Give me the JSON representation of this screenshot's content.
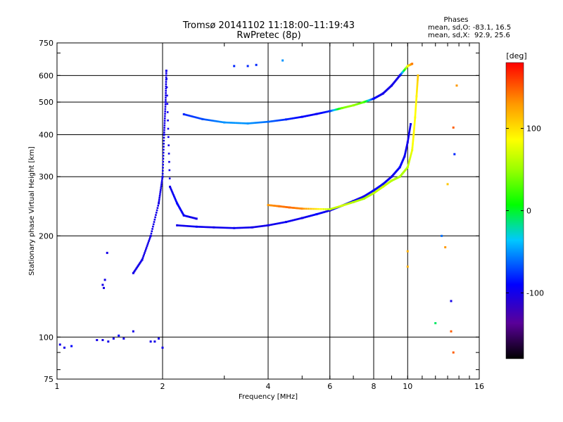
{
  "chart_data": {
    "type": "scatter",
    "title": "Tromsø 20141102 11:18:00–11:19:43",
    "subtitle": "RwPretec (8p)",
    "xlabel": "Frequency [MHz]",
    "ylabel": "Stationary phase Virtual Height [km]",
    "x_scale": "log",
    "y_scale": "log",
    "xlim": [
      1,
      16
    ],
    "ylim": [
      75,
      750
    ],
    "x_ticks": [
      1,
      2,
      4,
      6,
      8,
      10,
      16
    ],
    "x_tick_labels": [
      "1",
      "2",
      "4",
      "6",
      "8",
      "10",
      "16"
    ],
    "y_ticks": [
      75,
      100,
      200,
      300,
      400,
      500,
      600,
      750
    ],
    "y_tick_labels": [
      "75",
      "100",
      "200",
      "300",
      "400",
      "500",
      "600",
      "750"
    ],
    "grid": true,
    "legend": {
      "title": "Phases",
      "line_o": "mean, sd,O: -83.1, 16.5",
      "line_x": "mean, sd,X:  92.9, 25.6"
    },
    "colorbar": {
      "label": "[deg]",
      "range": [
        -180,
        180
      ],
      "ticks": [
        100,
        0,
        -100
      ],
      "tick_labels": [
        "100",
        "0",
        "-100"
      ]
    },
    "series": [
      {
        "values_desc": "E/low traces",
        "points": [
          [
            1.02,
            95,
            -100
          ],
          [
            1.05,
            93,
            -100
          ],
          [
            1.1,
            94,
            -90
          ],
          [
            1.3,
            98,
            -100
          ],
          [
            1.35,
            98,
            -100
          ],
          [
            1.4,
            97,
            -100
          ],
          [
            1.45,
            99,
            -100
          ],
          [
            1.5,
            101,
            -90
          ],
          [
            1.55,
            99,
            -100
          ],
          [
            1.65,
            104,
            -100
          ],
          [
            1.85,
            97,
            -100
          ],
          [
            1.9,
            97,
            -100
          ],
          [
            1.95,
            99,
            -100
          ],
          [
            2.0,
            93,
            -100
          ],
          [
            1.35,
            143,
            -100
          ],
          [
            1.37,
            148,
            -100
          ],
          [
            1.39,
            178,
            -100
          ],
          [
            1.36,
            140,
            -100
          ]
        ]
      },
      {
        "values_desc": "F-layer O trace",
        "points": [
          [
            2.2,
            215,
            -100
          ],
          [
            2.5,
            213,
            -95
          ],
          [
            2.8,
            212,
            -100
          ],
          [
            3.2,
            211,
            -95
          ],
          [
            3.6,
            212,
            -100
          ],
          [
            4.0,
            215,
            -100
          ],
          [
            4.5,
            220,
            -95
          ],
          [
            5.0,
            226,
            -100
          ],
          [
            5.5,
            232,
            -90
          ],
          [
            6.0,
            238,
            -100
          ],
          [
            6.5,
            246,
            -90
          ],
          [
            7.0,
            254,
            -95
          ],
          [
            7.5,
            262,
            -100
          ],
          [
            8.0,
            273,
            -90
          ],
          [
            8.5,
            285,
            -95
          ],
          [
            9.0,
            300,
            -100
          ],
          [
            9.5,
            320,
            -90
          ],
          [
            9.8,
            345,
            -95
          ],
          [
            10.0,
            380,
            -100
          ],
          [
            10.2,
            430,
            -95
          ]
        ]
      },
      {
        "values_desc": "F-layer X trace",
        "points": [
          [
            4.0,
            247,
            130
          ],
          [
            4.3,
            245,
            140
          ],
          [
            4.6,
            243,
            145
          ],
          [
            5.0,
            241,
            135
          ],
          [
            6.0,
            240,
            60
          ],
          [
            6.5,
            246,
            70
          ],
          [
            7.0,
            252,
            60
          ],
          [
            7.5,
            258,
            55
          ],
          [
            8.0,
            268,
            60
          ],
          [
            8.5,
            280,
            70
          ],
          [
            9.0,
            292,
            60
          ],
          [
            9.5,
            300,
            55
          ],
          [
            10.0,
            320,
            60
          ],
          [
            10.3,
            360,
            80
          ],
          [
            10.4,
            400,
            90
          ],
          [
            10.5,
            450,
            85
          ],
          [
            10.6,
            520,
            90
          ],
          [
            10.7,
            600,
            110
          ]
        ]
      },
      {
        "values_desc": "Upper multi-hop trace",
        "points": [
          [
            2.3,
            460,
            -80
          ],
          [
            2.6,
            445,
            -70
          ],
          [
            3.0,
            435,
            -50
          ],
          [
            3.5,
            432,
            -50
          ],
          [
            4.0,
            437,
            -60
          ],
          [
            4.5,
            444,
            -80
          ],
          [
            5.0,
            452,
            -90
          ],
          [
            5.5,
            461,
            -95
          ],
          [
            6.0,
            470,
            -80
          ],
          [
            6.5,
            480,
            40
          ],
          [
            7.0,
            489,
            50
          ],
          [
            7.5,
            500,
            30
          ],
          [
            8.0,
            512,
            -90
          ],
          [
            8.5,
            530,
            -100
          ],
          [
            9.0,
            560,
            -100
          ],
          [
            9.5,
            600,
            -100
          ],
          [
            10.0,
            640,
            80
          ],
          [
            10.3,
            650,
            140
          ]
        ]
      },
      {
        "values_desc": "Spread-F column near 2 MHz",
        "points": [
          [
            1.65,
            155,
            -100
          ],
          [
            1.75,
            170,
            -100
          ],
          [
            1.85,
            200,
            -100
          ],
          [
            1.95,
            250,
            -100
          ],
          [
            2.0,
            300,
            -100
          ],
          [
            2.02,
            400,
            -100
          ],
          [
            2.04,
            500,
            -100
          ],
          [
            2.05,
            620,
            -100
          ],
          [
            2.1,
            280,
            -100
          ],
          [
            2.2,
            250,
            -90
          ],
          [
            2.3,
            230,
            -95
          ],
          [
            2.5,
            225,
            -100
          ]
        ]
      },
      {
        "values_desc": "Scattered points",
        "points": [
          [
            3.2,
            640,
            -80
          ],
          [
            3.5,
            640,
            -80
          ],
          [
            3.7,
            645,
            -80
          ],
          [
            4.4,
            665,
            -50
          ],
          [
            13.5,
            420,
            150
          ],
          [
            13.6,
            350,
            -80
          ],
          [
            13.8,
            560,
            130
          ],
          [
            13.0,
            285,
            110
          ],
          [
            12.5,
            200,
            -60
          ],
          [
            12.8,
            185,
            130
          ],
          [
            13.3,
            128,
            -100
          ],
          [
            13.3,
            104,
            150
          ],
          [
            13.5,
            90,
            150
          ],
          [
            12.0,
            110,
            -10
          ],
          [
            10.0,
            180,
            120
          ],
          [
            10.0,
            162,
            120
          ]
        ]
      }
    ]
  }
}
